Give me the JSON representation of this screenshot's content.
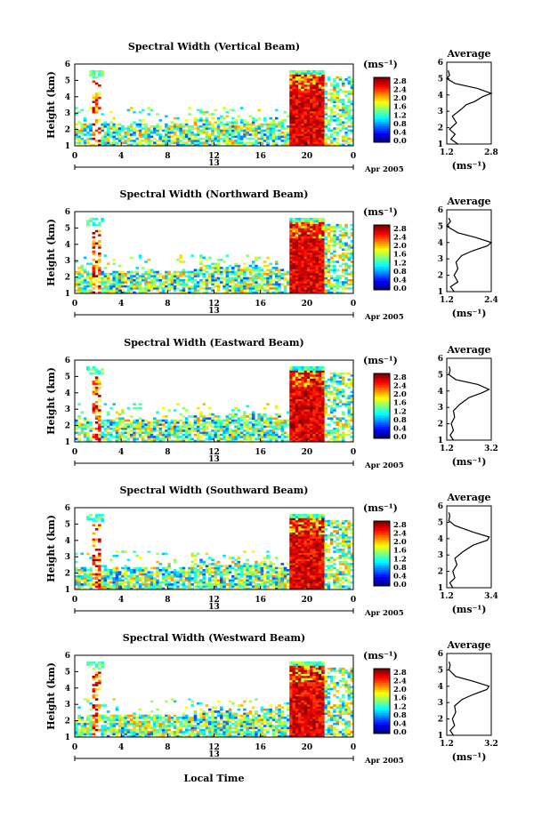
{
  "figure": {
    "xlabel_bottom": "Local Time",
    "date_label": "Apr 2005",
    "day_label": "13"
  },
  "chart_data": [
    {
      "type": "heatmap",
      "title": "Spectral Width (Vertical Beam)",
      "ylabel": "Height (km)",
      "ylim": [
        1,
        6
      ],
      "yticks": [
        "1",
        "2",
        "3",
        "4",
        "5",
        "6"
      ],
      "xlim": [
        0,
        24
      ],
      "xticks": [
        "0",
        "4",
        "8",
        "12",
        "16",
        "20",
        "0"
      ],
      "colorbar": {
        "unit": "(ms⁻¹)",
        "ticks": [
          "0.0",
          "0.4",
          "0.8",
          "1.2",
          "1.6",
          "2.0",
          "2.4",
          "2.8"
        ]
      },
      "average": {
        "title": "Average",
        "ylim": [
          1,
          6
        ],
        "yticks": [
          "1",
          "2",
          "3",
          "4",
          "5",
          "6"
        ],
        "xticks": [
          "1.2",
          "2.8"
        ],
        "xlabel": "(ms⁻¹)",
        "profile": [
          [
            1.6,
            1.0
          ],
          [
            1.35,
            1.3
          ],
          [
            1.5,
            1.6
          ],
          [
            1.3,
            1.9
          ],
          [
            1.55,
            2.3
          ],
          [
            1.4,
            2.7
          ],
          [
            1.7,
            3.1
          ],
          [
            1.9,
            3.4
          ],
          [
            2.2,
            3.6
          ],
          [
            2.5,
            3.9
          ],
          [
            2.8,
            4.1
          ],
          [
            2.3,
            4.4
          ],
          [
            1.5,
            4.7
          ],
          [
            1.2,
            5.0
          ],
          [
            1.3,
            5.2
          ],
          [
            1.25,
            5.5
          ]
        ]
      }
    },
    {
      "type": "heatmap",
      "title": "Spectral Width (Northward Beam)",
      "ylabel": "Height (km)",
      "ylim": [
        1,
        6
      ],
      "yticks": [
        "1",
        "2",
        "3",
        "4",
        "5",
        "6"
      ],
      "xlim": [
        0,
        24
      ],
      "xticks": [
        "0",
        "4",
        "8",
        "12",
        "16",
        "20",
        "0"
      ],
      "colorbar": {
        "unit": "(ms⁻¹)",
        "ticks": [
          "0.0",
          "0.4",
          "0.8",
          "1.2",
          "1.6",
          "2.0",
          "2.4",
          "2.8"
        ]
      },
      "average": {
        "title": "Average",
        "ylim": [
          1,
          6
        ],
        "yticks": [
          "1",
          "2",
          "3",
          "4",
          "5",
          "6"
        ],
        "xticks": [
          "1.2",
          "2.4"
        ],
        "xlabel": "(ms⁻¹)",
        "profile": [
          [
            1.4,
            1.0
          ],
          [
            1.3,
            1.3
          ],
          [
            1.5,
            1.6
          ],
          [
            1.4,
            2.0
          ],
          [
            1.5,
            2.4
          ],
          [
            1.45,
            2.8
          ],
          [
            1.6,
            3.2
          ],
          [
            1.9,
            3.5
          ],
          [
            2.3,
            3.8
          ],
          [
            2.4,
            4.0
          ],
          [
            2.0,
            4.3
          ],
          [
            1.5,
            4.6
          ],
          [
            1.2,
            5.0
          ],
          [
            1.3,
            5.3
          ],
          [
            1.25,
            5.5
          ]
        ]
      }
    },
    {
      "type": "heatmap",
      "title": "Spectral Width (Eastward Beam)",
      "ylabel": "Height (km)",
      "ylim": [
        1,
        6
      ],
      "yticks": [
        "1",
        "2",
        "3",
        "4",
        "5",
        "6"
      ],
      "xlim": [
        0,
        24
      ],
      "xticks": [
        "0",
        "4",
        "8",
        "12",
        "16",
        "20",
        "0"
      ],
      "colorbar": {
        "unit": "(ms⁻¹)",
        "ticks": [
          "0.0",
          "0.4",
          "0.8",
          "1.2",
          "1.6",
          "2.0",
          "2.4",
          "2.8"
        ]
      },
      "average": {
        "title": "Average",
        "ylim": [
          1,
          6
        ],
        "yticks": [
          "1",
          "2",
          "3",
          "4",
          "5",
          "6"
        ],
        "xticks": [
          "1.2",
          "3.2"
        ],
        "xlabel": "(ms⁻¹)",
        "profile": [
          [
            1.5,
            1.0
          ],
          [
            1.35,
            1.3
          ],
          [
            1.5,
            1.6
          ],
          [
            1.4,
            2.0
          ],
          [
            1.55,
            2.4
          ],
          [
            1.5,
            2.8
          ],
          [
            1.8,
            3.2
          ],
          [
            2.2,
            3.6
          ],
          [
            2.8,
            3.9
          ],
          [
            3.1,
            4.1
          ],
          [
            2.6,
            4.4
          ],
          [
            1.6,
            4.7
          ],
          [
            1.3,
            5.0
          ],
          [
            1.35,
            5.3
          ],
          [
            1.3,
            5.5
          ]
        ]
      }
    },
    {
      "type": "heatmap",
      "title": "Spectral Width (Southward Beam)",
      "ylabel": "Height (km)",
      "ylim": [
        1,
        6
      ],
      "yticks": [
        "1",
        "2",
        "3",
        "4",
        "5",
        "6"
      ],
      "xlim": [
        0,
        24
      ],
      "xticks": [
        "0",
        "4",
        "8",
        "12",
        "16",
        "20",
        "0"
      ],
      "colorbar": {
        "unit": "(ms⁻¹)",
        "ticks": [
          "0.0",
          "0.4",
          "0.8",
          "1.2",
          "1.6",
          "2.0",
          "2.4",
          "2.8"
        ]
      },
      "average": {
        "title": "Average",
        "ylim": [
          1,
          6
        ],
        "yticks": [
          "1",
          "2",
          "3",
          "4",
          "5",
          "6"
        ],
        "xticks": [
          "1.2",
          "3.4"
        ],
        "xlabel": "(ms⁻¹)",
        "profile": [
          [
            1.5,
            1.0
          ],
          [
            1.35,
            1.3
          ],
          [
            1.6,
            1.6
          ],
          [
            1.5,
            2.0
          ],
          [
            1.7,
            2.4
          ],
          [
            1.6,
            2.8
          ],
          [
            2.0,
            3.2
          ],
          [
            2.5,
            3.6
          ],
          [
            3.2,
            3.9
          ],
          [
            3.3,
            4.1
          ],
          [
            2.5,
            4.4
          ],
          [
            1.6,
            4.8
          ],
          [
            1.3,
            5.1
          ],
          [
            1.35,
            5.4
          ],
          [
            1.3,
            5.6
          ]
        ]
      }
    },
    {
      "type": "heatmap",
      "title": "Spectral Width (Westward Beam)",
      "ylabel": "Height (km)",
      "ylim": [
        1,
        6
      ],
      "yticks": [
        "1",
        "2",
        "3",
        "4",
        "5",
        "6"
      ],
      "xlim": [
        0,
        24
      ],
      "xticks": [
        "0",
        "4",
        "8",
        "12",
        "16",
        "20",
        "0"
      ],
      "colorbar": {
        "unit": "(ms⁻¹)",
        "ticks": [
          "0.0",
          "0.4",
          "0.8",
          "1.2",
          "1.6",
          "2.0",
          "2.4",
          "2.8"
        ]
      },
      "average": {
        "title": "Average",
        "ylim": [
          1,
          6
        ],
        "yticks": [
          "1",
          "2",
          "3",
          "4",
          "5",
          "6"
        ],
        "xticks": [
          "1.2",
          "3.2"
        ],
        "xlabel": "(ms⁻¹)",
        "profile": [
          [
            1.5,
            1.0
          ],
          [
            1.35,
            1.3
          ],
          [
            1.55,
            1.6
          ],
          [
            1.45,
            2.0
          ],
          [
            1.6,
            2.4
          ],
          [
            1.55,
            2.8
          ],
          [
            1.9,
            3.2
          ],
          [
            2.4,
            3.5
          ],
          [
            3.0,
            3.8
          ],
          [
            3.1,
            4.0
          ],
          [
            2.4,
            4.3
          ],
          [
            1.6,
            4.6
          ],
          [
            1.3,
            5.0
          ],
          [
            1.35,
            5.3
          ],
          [
            1.3,
            5.5
          ]
        ]
      }
    }
  ]
}
